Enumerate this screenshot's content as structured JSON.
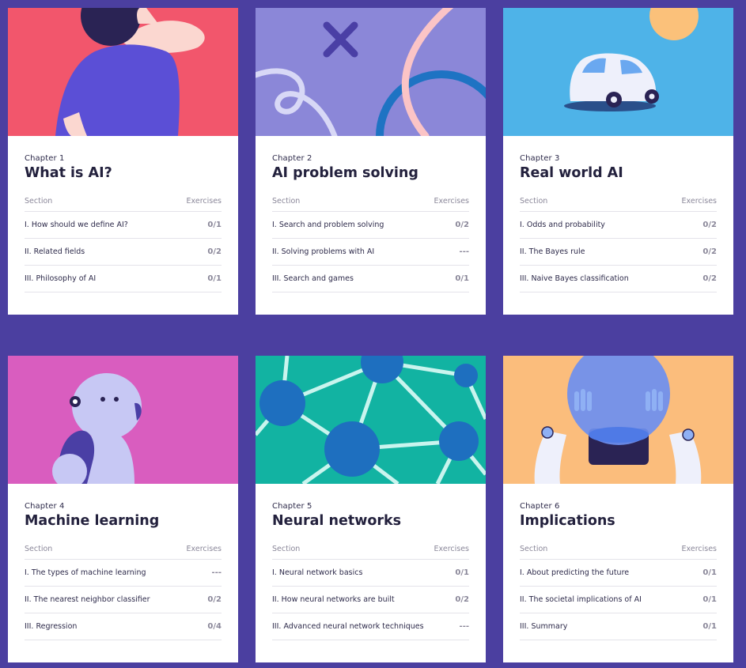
{
  "colors": {
    "page_bg": "#4b3fa0",
    "card_bg": "#ffffff",
    "chapter1_art": "#f2566c",
    "chapter2_art": "#8b87d8",
    "chapter3_art": "#4eb3e8",
    "chapter4_art": "#d95dbf",
    "chapter5_art": "#12b3a2",
    "chapter6_art": "#fbbd7c"
  },
  "table_headers": {
    "section": "Section",
    "exercises": "Exercises"
  },
  "chapters": [
    {
      "label": "Chapter 1",
      "title": "What is AI?",
      "art": "person-thinking-illustration",
      "sections": [
        {
          "name": "I. How should we define AI?",
          "score": "0/1"
        },
        {
          "name": "II. Related fields",
          "score": "0/2"
        },
        {
          "name": "III. Philosophy of AI",
          "score": "0/1"
        }
      ]
    },
    {
      "label": "Chapter 2",
      "title": "AI problem solving",
      "art": "paths-and-arrow-illustration",
      "sections": [
        {
          "name": "I. Search and problem solving",
          "score": "0/2"
        },
        {
          "name": "II. Solving problems with AI",
          "score": "---"
        },
        {
          "name": "III. Search and games",
          "score": "0/1"
        }
      ]
    },
    {
      "label": "Chapter 3",
      "title": "Real world AI",
      "art": "self-driving-car-illustration",
      "sections": [
        {
          "name": "I. Odds and probability",
          "score": "0/2"
        },
        {
          "name": "II. The Bayes rule",
          "score": "0/2"
        },
        {
          "name": "III. Naive Bayes classification",
          "score": "0/2"
        }
      ]
    },
    {
      "label": "Chapter 4",
      "title": "Machine learning",
      "art": "robot-illustration",
      "sections": [
        {
          "name": "I. The types of machine learning",
          "score": "---"
        },
        {
          "name": "II. The nearest neighbor classifier",
          "score": "0/2"
        },
        {
          "name": "III. Regression",
          "score": "0/4"
        }
      ]
    },
    {
      "label": "Chapter 5",
      "title": "Neural networks",
      "art": "network-graph-illustration",
      "sections": [
        {
          "name": "I. Neural network basics",
          "score": "0/1"
        },
        {
          "name": "II. How neural networks are built",
          "score": "0/2"
        },
        {
          "name": "III. Advanced neural network techniques",
          "score": "---"
        }
      ]
    },
    {
      "label": "Chapter 6",
      "title": "Implications",
      "art": "robot-crystal-ball-illustration",
      "sections": [
        {
          "name": "I. About predicting the future",
          "score": "0/1"
        },
        {
          "name": "II. The societal implications of AI",
          "score": "0/1"
        },
        {
          "name": "III. Summary",
          "score": "0/1"
        }
      ]
    }
  ]
}
